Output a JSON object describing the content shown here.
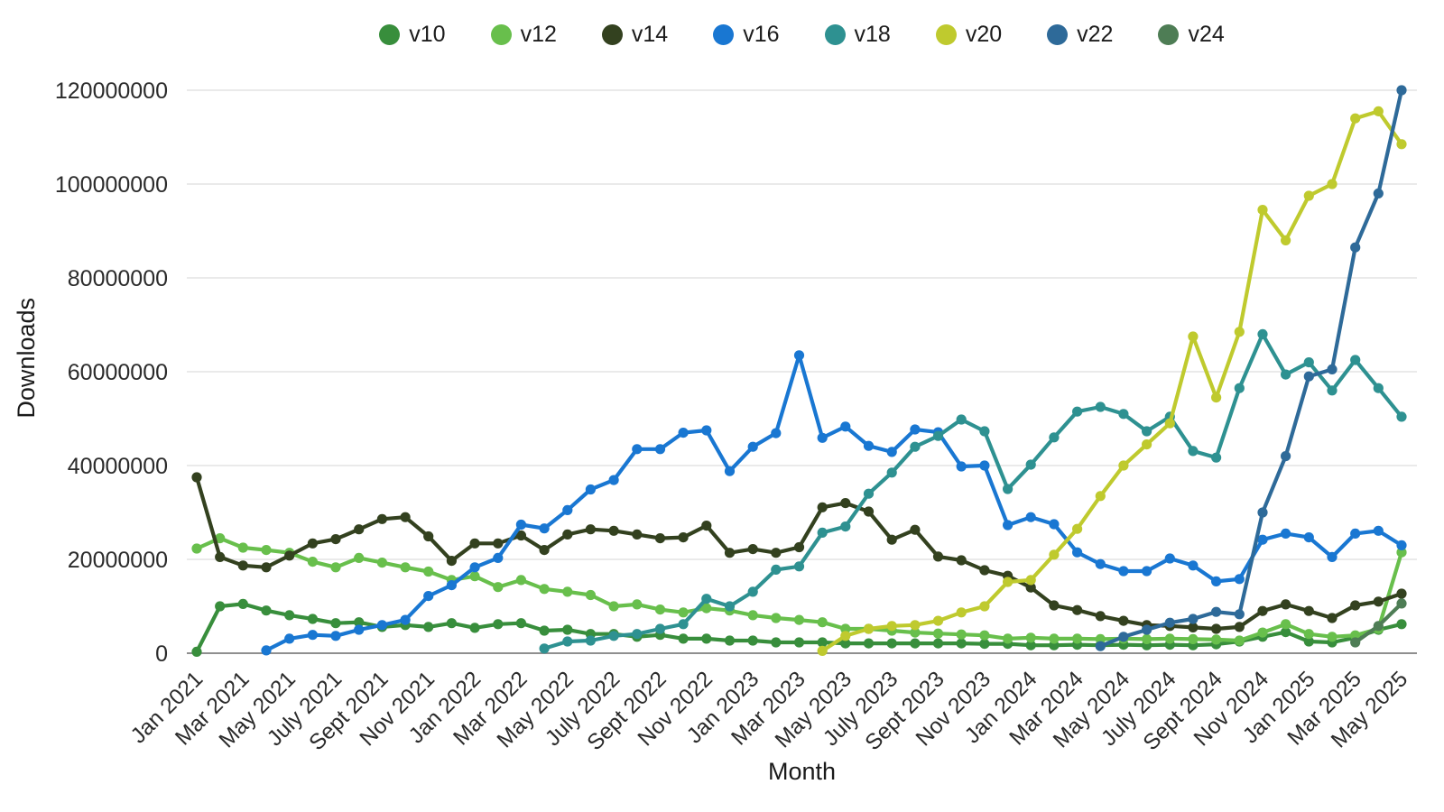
{
  "page": {
    "background": "#ffffff"
  },
  "style": {
    "gridline_color": "#e4e4e4",
    "axis_line_color": "#8f8f8f",
    "tick_text_color": "#2b2b2b",
    "axis_title_color": "#1a1a1a",
    "legend_text_color": "#1c1c1c"
  },
  "chart_data": {
    "type": "line",
    "title": "",
    "xlabel": "Month",
    "ylabel": "Downloads",
    "legend_position": "top",
    "grid": true,
    "ylim": [
      0,
      120000000
    ],
    "y_unit": "downloads per month",
    "values_unit_multiplier": 1000000,
    "ytick_labels": [
      "0",
      "20000000",
      "40000000",
      "60000000",
      "80000000",
      "100000000",
      "120000000"
    ],
    "xtick_labels": [
      "Jan 2021",
      "Mar 2021",
      "May 2021",
      "July 2021",
      "Sept 2021",
      "Nov 2021",
      "Jan 2022",
      "Mar 2022",
      "May 2022",
      "July 2022",
      "Sept 2022",
      "Nov 2022",
      "Jan 2023",
      "Mar 2023",
      "May 2023",
      "July 2023",
      "Sept 2023",
      "Nov 2023",
      "Jan 2024",
      "Mar 2024",
      "May 2024",
      "July 2024",
      "Sept 2024",
      "Nov 2024",
      "Jan 2025",
      "Mar 2025",
      "May 2025"
    ],
    "xtick_every": 2,
    "x": [
      "Jan 2021",
      "Feb 2021",
      "Mar 2021",
      "Apr 2021",
      "May 2021",
      "Jun 2021",
      "July 2021",
      "Aug 2021",
      "Sept 2021",
      "Oct 2021",
      "Nov 2021",
      "Dec 2021",
      "Jan 2022",
      "Feb 2022",
      "Mar 2022",
      "Apr 2022",
      "May 2022",
      "Jun 2022",
      "July 2022",
      "Aug 2022",
      "Sept 2022",
      "Oct 2022",
      "Nov 2022",
      "Dec 2022",
      "Jan 2023",
      "Feb 2023",
      "Mar 2023",
      "Apr 2023",
      "May 2023",
      "Jun 2023",
      "July 2023",
      "Aug 2023",
      "Sept 2023",
      "Oct 2023",
      "Nov 2023",
      "Dec 2023",
      "Jan 2024",
      "Feb 2024",
      "Mar 2024",
      "Apr 2024",
      "May 2024",
      "Jun 2024",
      "July 2024",
      "Aug 2024",
      "Sept 2024",
      "Oct 2024",
      "Nov 2024",
      "Dec 2024",
      "Jan 2025",
      "Feb 2025",
      "Mar 2025",
      "Apr 2025",
      "May 2025"
    ],
    "series": [
      {
        "name": "v10",
        "color": "#388e3c",
        "values_millions": [
          0.3,
          10,
          10.5,
          9.1,
          8.1,
          7.3,
          6.4,
          6.6,
          5.6,
          6,
          5.6,
          6.4,
          5.4,
          6.2,
          6.4,
          4.8,
          5,
          4.1,
          4.1,
          3.5,
          3.9,
          3.1,
          3.1,
          2.7,
          2.7,
          2.3,
          2.3,
          2.3,
          2.1,
          2.1,
          2.1,
          2.1,
          2.1,
          2.1,
          2,
          2,
          1.7,
          1.7,
          1.8,
          1.7,
          1.8,
          1.7,
          1.8,
          1.7,
          1.9,
          2.5,
          3.5,
          4.5,
          2.5,
          2.3,
          3.3,
          5,
          6.2
        ]
      },
      {
        "name": "v12",
        "color": "#68bf4c",
        "values_millions": [
          22.3,
          24.5,
          22.5,
          22,
          21.4,
          19.5,
          18.3,
          20.3,
          19.3,
          18.3,
          17.4,
          15.6,
          16.4,
          14.1,
          15.6,
          13.7,
          13.1,
          12.4,
          10,
          10.4,
          9.3,
          8.7,
          9.6,
          9.1,
          8.1,
          7.5,
          7.1,
          6.6,
          5.2,
          5.2,
          4.8,
          4.4,
          4.2,
          4,
          3.8,
          3.1,
          3.3,
          3.1,
          3.1,
          3,
          3.1,
          3,
          3.1,
          3,
          2.9,
          2.7,
          4.4,
          6.2,
          4.1,
          3.5,
          3.8,
          5.2,
          21.5
        ]
      },
      {
        "name": "v14",
        "color": "#33411f",
        "values_millions": [
          37.5,
          20.5,
          18.7,
          18.3,
          20.8,
          23.4,
          24.3,
          26.4,
          28.6,
          29,
          24.9,
          19.7,
          23.4,
          23.4,
          25.1,
          22,
          25.3,
          26.4,
          26.1,
          25.3,
          24.5,
          24.7,
          27.2,
          21.4,
          22.2,
          21.4,
          22.6,
          31.1,
          32,
          30.2,
          24.2,
          26.3,
          20.6,
          19.8,
          17.7,
          16.5,
          14,
          10.2,
          9.2,
          7.9,
          6.9,
          6,
          5.8,
          5.5,
          5.2,
          5.6,
          9,
          10.4,
          9,
          7.5,
          10.2,
          11,
          12.7
        ]
      },
      {
        "name": "v16",
        "color": "#1977d2",
        "values_millions": [
          null,
          null,
          null,
          0.6,
          3.1,
          3.9,
          3.7,
          5,
          6,
          7.1,
          12.2,
          14.5,
          18.3,
          20.3,
          27.4,
          26.6,
          30.5,
          34.9,
          36.9,
          43.5,
          43.5,
          47,
          47.5,
          38.8,
          44,
          46.9,
          63.5,
          45.9,
          48.3,
          44.2,
          42.9,
          47.7,
          47.1,
          39.8,
          40,
          27.3,
          29,
          27.5,
          21.5,
          19,
          17.5,
          17.5,
          20.2,
          18.7,
          15.3,
          15.8,
          24.2,
          25.5,
          24.7,
          20.5,
          25.5,
          26.1,
          23
        ]
      },
      {
        "name": "v18",
        "color": "#2e9191",
        "values_millions": [
          null,
          null,
          null,
          null,
          null,
          null,
          null,
          null,
          null,
          null,
          null,
          null,
          null,
          null,
          null,
          1,
          2.5,
          2.7,
          3.7,
          4.1,
          5.2,
          6.2,
          11.6,
          10,
          13.1,
          17.8,
          18.5,
          25.7,
          27,
          34,
          38.5,
          44,
          46.3,
          49.8,
          47.3,
          35,
          40.2,
          46,
          51.5,
          52.5,
          51,
          47.3,
          50.4,
          43.1,
          41.7,
          56.5,
          68,
          59.4,
          62,
          56,
          62.5,
          56.5,
          50.4
        ]
      },
      {
        "name": "v20",
        "color": "#bfca2e",
        "values_millions": [
          null,
          null,
          null,
          null,
          null,
          null,
          null,
          null,
          null,
          null,
          null,
          null,
          null,
          null,
          null,
          null,
          null,
          null,
          null,
          null,
          null,
          null,
          null,
          null,
          null,
          null,
          null,
          0.5,
          3.7,
          5.2,
          5.8,
          6,
          6.9,
          8.7,
          10,
          15.2,
          15.6,
          21,
          26.5,
          33.5,
          40,
          44.5,
          49,
          67.5,
          54.5,
          68.5,
          94.5,
          88,
          97.5,
          100,
          114,
          115.5,
          108.5
        ]
      },
      {
        "name": "v22",
        "color": "#2e6a99",
        "values_millions": [
          null,
          null,
          null,
          null,
          null,
          null,
          null,
          null,
          null,
          null,
          null,
          null,
          null,
          null,
          null,
          null,
          null,
          null,
          null,
          null,
          null,
          null,
          null,
          null,
          null,
          null,
          null,
          null,
          null,
          null,
          null,
          null,
          null,
          null,
          null,
          null,
          null,
          null,
          null,
          1.5,
          3.5,
          5,
          6.5,
          7.3,
          8.8,
          8.3,
          30,
          42,
          59,
          60.5,
          86.5,
          98,
          120
        ]
      },
      {
        "name": "v24",
        "color": "#4e7d55",
        "values_millions": [
          null,
          null,
          null,
          null,
          null,
          null,
          null,
          null,
          null,
          null,
          null,
          null,
          null,
          null,
          null,
          null,
          null,
          null,
          null,
          null,
          null,
          null,
          null,
          null,
          null,
          null,
          null,
          null,
          null,
          null,
          null,
          null,
          null,
          null,
          null,
          null,
          null,
          null,
          null,
          null,
          null,
          null,
          null,
          null,
          null,
          null,
          null,
          null,
          null,
          null,
          2.3,
          5.8,
          10.6
        ]
      }
    ]
  }
}
